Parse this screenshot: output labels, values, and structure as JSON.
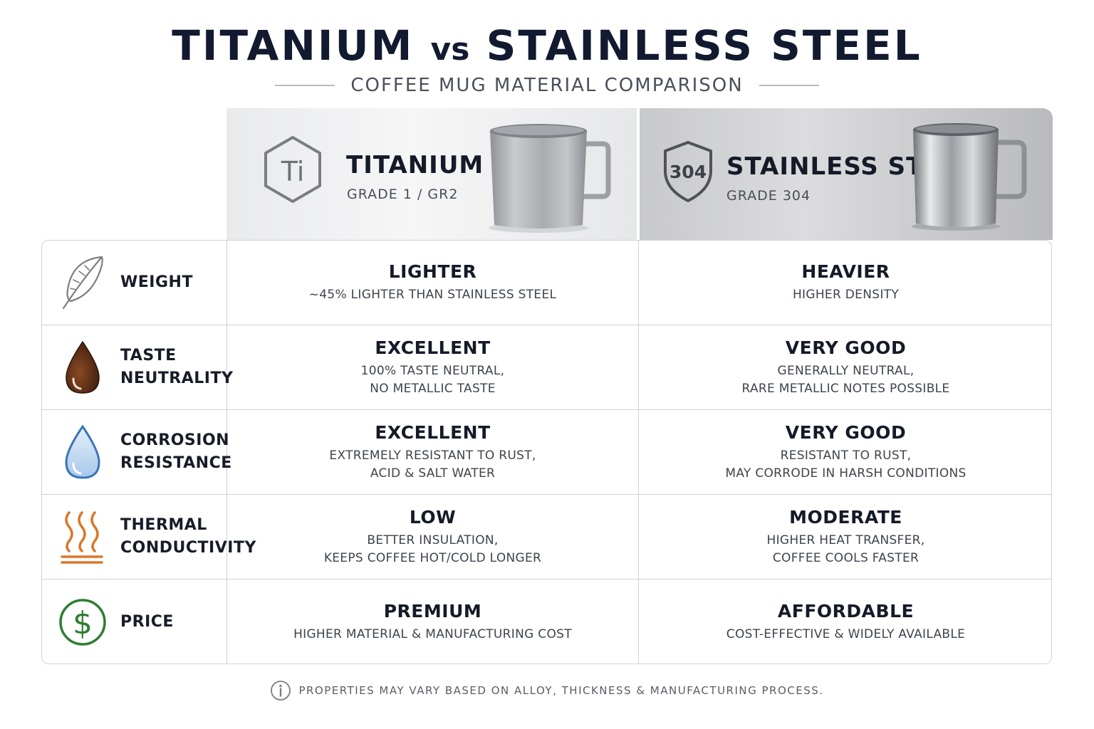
{
  "header": {
    "title_left": "TITANIUM",
    "title_vs": "vs",
    "title_right": "STAINLESS STEEL",
    "subtitle": "COFFEE MUG MATERIAL COMPARISON"
  },
  "materials": [
    {
      "badge": "Ti",
      "name": "TITANIUM",
      "grade": "GRADE 1 / GR2"
    },
    {
      "badge": "304",
      "name": "STAINLESS STEEL",
      "grade": "GRADE 304"
    }
  ],
  "rows": [
    {
      "icon": "feather-icon",
      "label": "WEIGHT",
      "titanium": {
        "value": "LIGHTER",
        "detail": "~45% LIGHTER THAN STAINLESS STEEL"
      },
      "steel": {
        "value": "HEAVIER",
        "detail": "HIGHER DENSITY"
      }
    },
    {
      "icon": "coffee-drop-icon",
      "label": "TASTE\nNEUTRALITY",
      "titanium": {
        "value": "EXCELLENT",
        "detail": "100% TASTE NEUTRAL,\nNO METALLIC TASTE"
      },
      "steel": {
        "value": "VERY GOOD",
        "detail": "GENERALLY NEUTRAL,\nRARE METALLIC NOTES POSSIBLE"
      }
    },
    {
      "icon": "water-drop-icon",
      "label": "CORROSION\nRESISTANCE",
      "titanium": {
        "value": "EXCELLENT",
        "detail": "EXTREMELY RESISTANT TO RUST,\nACID & SALT WATER"
      },
      "steel": {
        "value": "VERY GOOD",
        "detail": "RESISTANT TO RUST,\nMAY CORRODE IN HARSH CONDITIONS"
      }
    },
    {
      "icon": "heat-waves-icon",
      "label": "THERMAL\nCONDUCTIVITY",
      "titanium": {
        "value": "LOW",
        "detail": "BETTER INSULATION,\nKEEPS COFFEE HOT/COLD LONGER"
      },
      "steel": {
        "value": "MODERATE",
        "detail": "HIGHER HEAT TRANSFER,\nCOFFEE COOLS FASTER"
      }
    },
    {
      "icon": "dollar-icon",
      "label": "PRICE",
      "titanium": {
        "value": "PREMIUM",
        "detail": "HIGHER MATERIAL & MANUFACTURING COST"
      },
      "steel": {
        "value": "AFFORDABLE",
        "detail": "COST-EFFECTIVE & WIDELY AVAILABLE"
      }
    }
  ],
  "footnote": "PROPERTIES MAY VARY BASED ON ALLOY, THICKNESS & MANUFACTURING PROCESS.",
  "colors": {
    "title": "#121a30",
    "coffee": "#5a2e16",
    "water": "#3c74b8",
    "heat": "#d9782c",
    "price": "#2e7d32"
  }
}
